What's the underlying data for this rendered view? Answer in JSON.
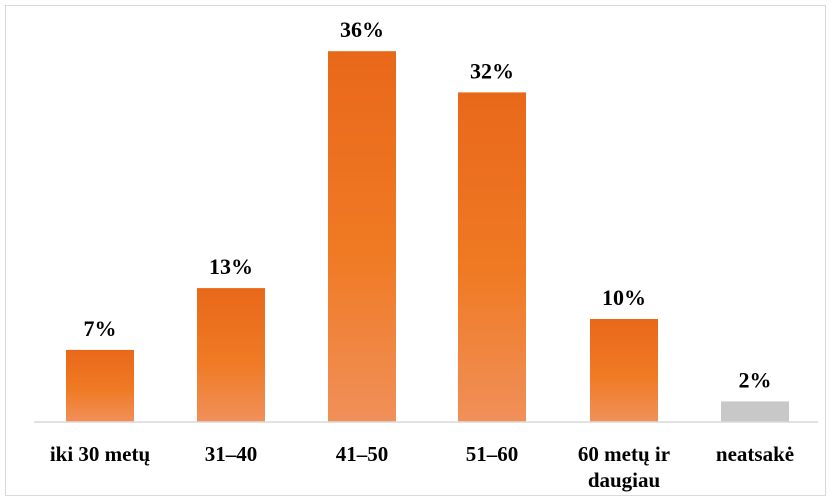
{
  "chart_data": {
    "type": "bar",
    "title": "",
    "xlabel": "",
    "ylabel": "",
    "categories": [
      [
        "iki 30 metų"
      ],
      [
        "31–40"
      ],
      [
        "41–50"
      ],
      [
        "51–60"
      ],
      [
        "60 metų ir",
        "daugiau"
      ],
      [
        "neatsakė"
      ]
    ],
    "values": [
      7,
      13,
      36,
      32,
      10,
      2
    ],
    "value_labels": [
      "7%",
      "13%",
      "36%",
      "32%",
      "10%",
      "2%"
    ],
    "unit": "%",
    "ylim": [
      0,
      40
    ],
    "grid": false,
    "legend": "none",
    "colors": {
      "bar_top": "#e8681a",
      "bar_mid": "#f07a24",
      "bar_bottom": "#f0905a",
      "bar_other": "#c8c8c8",
      "axis": "#d9d9d9"
    },
    "highlight_gray_index": 5
  }
}
